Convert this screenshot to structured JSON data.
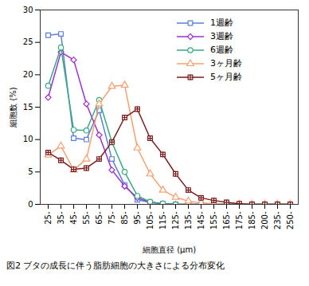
{
  "chart_data": {
    "type": "line",
    "title": "図2 ブタの成長に伴う脂肪細胞の大きさによる分布変化",
    "x_label": "細胞直径 (μm)",
    "y_label": "細胞数 (%)",
    "categories": [
      "25-",
      "35-",
      "45-",
      "55-",
      "65-",
      "75-",
      "85-",
      "95-",
      "105-",
      "115-",
      "125-",
      "135-",
      "145-",
      "155-",
      "165-",
      "175-",
      "185-",
      "200-",
      "235-",
      "250-"
    ],
    "series": [
      {
        "name": "1週齢",
        "color": "#5b7fd6",
        "marker": "square",
        "values": [
          26.1,
          26.3,
          10.2,
          10.0,
          14.5,
          7.0,
          3.0,
          0.7,
          0.3,
          0.1,
          0,
          0,
          0,
          0,
          0,
          0,
          0,
          0,
          0,
          0
        ]
      },
      {
        "name": "3週齢",
        "color": "#9b30d0",
        "marker": "diamond",
        "values": [
          16.5,
          23.5,
          22.3,
          15.5,
          10.7,
          5.3,
          2.8,
          1.0,
          0.3,
          0.1,
          0,
          0,
          0,
          0,
          0,
          0,
          0,
          0,
          0,
          0
        ]
      },
      {
        "name": "6週齢",
        "color": "#3aaa80",
        "marker": "circle",
        "values": [
          18.3,
          24.2,
          11.5,
          11.4,
          16.1,
          9.6,
          5.0,
          1.3,
          0.4,
          0.1,
          0,
          0,
          0,
          0,
          0,
          0,
          0,
          0,
          0,
          0
        ]
      },
      {
        "name": "3ヶ月齢",
        "color": "#f5a070",
        "marker": "triangle",
        "values": [
          7.6,
          9.0,
          5.3,
          7.0,
          15.5,
          18.2,
          18.4,
          8.7,
          4.7,
          2.2,
          1.1,
          0.5,
          0.2,
          0.1,
          0,
          0,
          0,
          0,
          0,
          0
        ]
      },
      {
        "name": "5ヶ月齢",
        "color": "#7a1c1c",
        "marker": "square-cross",
        "values": [
          8.0,
          6.8,
          5.4,
          5.6,
          7.0,
          9.6,
          13.4,
          14.7,
          10.2,
          7.7,
          4.7,
          2.2,
          1.0,
          0.6,
          0.3,
          0.1,
          0,
          0,
          0,
          0
        ]
      }
    ],
    "ylim": [
      0,
      30
    ],
    "yticks": [
      0,
      5,
      10,
      15,
      20,
      25,
      30
    ],
    "legend": "top-right",
    "grid": false
  }
}
